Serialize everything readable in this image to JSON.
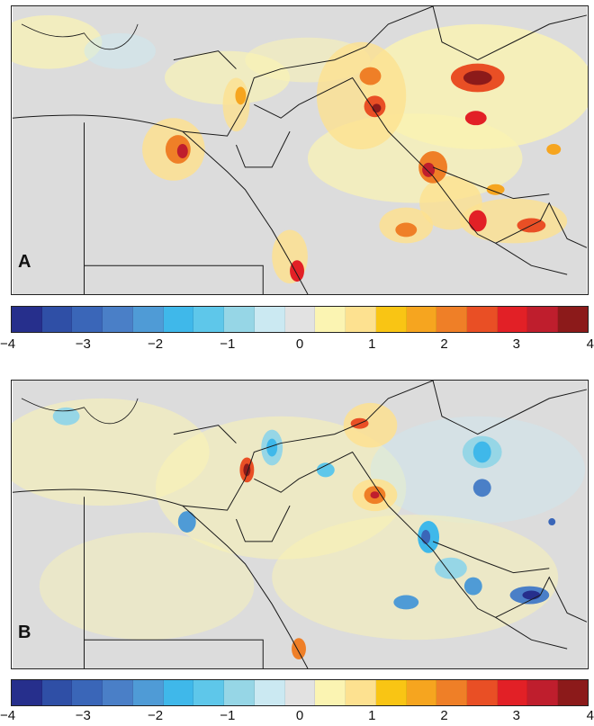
{
  "panels": [
    {
      "label": "A"
    },
    {
      "label": "B"
    }
  ],
  "colorbar": {
    "ticks": [
      "−4",
      "−3",
      "−2",
      "−1",
      "0",
      "1",
      "2",
      "3",
      "4"
    ],
    "tick_values": [
      -4,
      -3,
      -2,
      -1,
      0,
      1,
      2,
      3,
      4
    ],
    "range": [
      -4,
      4
    ],
    "colors": [
      "#262f8c",
      "#2f4fa6",
      "#3a66b8",
      "#4a7fc7",
      "#4f9bd6",
      "#3fb8ea",
      "#5ec7ea",
      "#96d6e6",
      "#cbe9f2",
      "#e2e2e2",
      "#fbf4b2",
      "#fde190",
      "#f9c514",
      "#f6a51f",
      "#ef7f27",
      "#e94f25",
      "#e22026",
      "#bf1e2d",
      "#8c1a1a"
    ]
  },
  "colors": {
    "land": "#dcdcdc",
    "border": "#1a1a1a"
  }
}
